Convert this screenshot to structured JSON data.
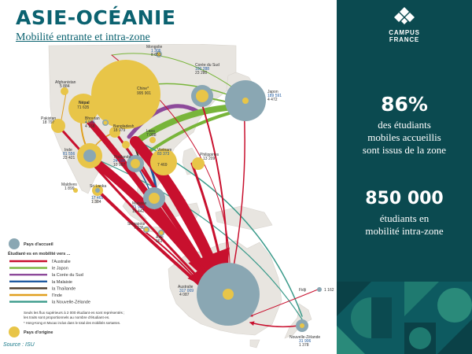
{
  "header": {
    "title": "ASIE-OCÉANIE",
    "subtitle": "Mobilité entrante et intra-zone"
  },
  "source": "Source : ISU",
  "panel": {
    "logo_line1": "CAMPUS",
    "logo_line2": "FRANCE",
    "stat1_value": "86%",
    "stat1_lines": [
      "des étudiants",
      "mobiles accueillis",
      "sont issus de la zone"
    ],
    "stat2_value": "850 000",
    "stat2_lines": [
      "étudiants en",
      "mobilité intra-zone"
    ]
  },
  "colors": {
    "australia": "#c8102e",
    "japan": "#78b53a",
    "korea": "#8d4a9a",
    "malaysia": "#1f5aa0",
    "thailand": "#4a3a2a",
    "india": "#e0a020",
    "newzealand": "#3a9a8a",
    "host": "#8aa7b3",
    "origin": "#e8c548",
    "land": "#e8e5e0",
    "panel": "#0b4a50"
  },
  "countries": {
    "mongolie": {
      "name": "Mongolie",
      "v1": "1 306",
      "v2": "8 651"
    },
    "coree": {
      "name": "Corée du Sud",
      "v1": "100 288",
      "v2": "23 280"
    },
    "japon": {
      "name": "Japon",
      "v1": "189 591",
      "v2": "4 472"
    },
    "chine": {
      "name": "Chine*",
      "v1": "995 901"
    },
    "afghanistan": {
      "name": "Afghanistan",
      "v1": "5 884"
    },
    "nepal": {
      "name": "Népal",
      "v1": "71 635"
    },
    "pakistan": {
      "name": "Pakistan",
      "v1": "18 797"
    },
    "bhoutan": {
      "name": "Bhoutan",
      "v1": "4 556",
      "v2": "4 158"
    },
    "bangladesh": {
      "name": "Bangladesh",
      "v1": "18 979"
    },
    "laos": {
      "name": "Laos",
      "v1": "7 088"
    },
    "inde": {
      "name": "Inde",
      "v1": "81 556",
      "v2": "23 421"
    },
    "thailande": {
      "name": "Thaïlande",
      "v1": "24 196",
      "v2": "10 997"
    },
    "vietnam": {
      "name": "Vietnam",
      "v1": "83 373",
      "v2": "7 469"
    },
    "philippines": {
      "name": "Philippines",
      "v1": "13 209"
    },
    "maldives": {
      "name": "Maldives",
      "v1": "1 899"
    },
    "srilanka": {
      "name": "Sri Lanka",
      "v1": "17 465",
      "v2": "1 384"
    },
    "malaisie": {
      "name": "Malaisie",
      "v1": "71 906",
      "v2": "15 442"
    },
    "singapour": {
      "name": "Singapour",
      "v1": "7 336"
    },
    "asie": {
      "name": "Asie",
      "v1": "963"
    },
    "australie": {
      "name": "Australie",
      "v1": "317 009",
      "v2": "4 087"
    },
    "fidji": {
      "name": "Fidji",
      "v1": "1 162"
    },
    "nz": {
      "name": "Nouvelle-Zélande",
      "v1": "31 906",
      "v2": "1 378"
    }
  },
  "legend": {
    "host": "Pays d'accueil",
    "flows_title": "Étudiant·es en mobilité vers ...",
    "items": [
      {
        "label": "l'Australie",
        "color": "#c8102e"
      },
      {
        "label": "le Japon",
        "color": "#78b53a"
      },
      {
        "label": "la Corée du Sud",
        "color": "#8d4a9a"
      },
      {
        "label": "la Malaisie",
        "color": "#1f5aa0"
      },
      {
        "label": "la Thaïlande",
        "color": "#4a3a2a"
      },
      {
        "label": "l'Inde",
        "color": "#e0a020"
      },
      {
        "label": "la Nouvelle-Zélande",
        "color": "#3a9a8a"
      }
    ],
    "note1": "Seuls les flux supérieurs à 2 000 étudiant·es sont représentés ;",
    "note2": "les traits sont proportionnels au nombre d'étudiant·es.",
    "note3": "* Hong-Kong et Macao inclus dans le total des mobilités sortantes.",
    "origin": "Pays d'origine"
  }
}
